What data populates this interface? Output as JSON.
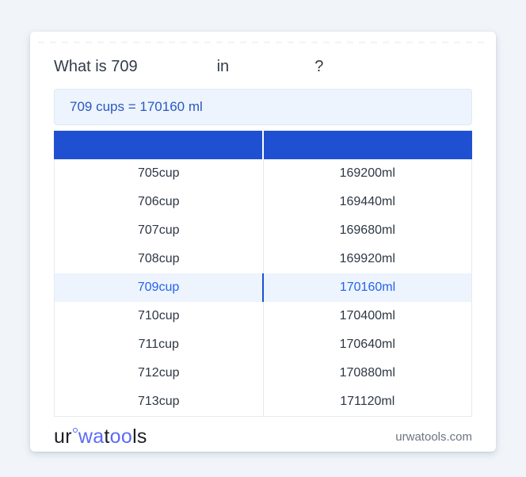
{
  "colors": {
    "page_bg": "#f1f4f9",
    "card_bg": "#ffffff",
    "table_header_blue": "#2050d2",
    "result_box_bg": "#edf4fd",
    "result_text_blue": "#2a58c4",
    "active_row_bg": "#edf4fe",
    "active_row_text": "#2563eb",
    "active_divider_blue": "#1d4ed8",
    "logo_accent_blue": "#5b6af5",
    "footer_text_gray": "#6b7480"
  },
  "title": {
    "prefix": "What is 709",
    "connector": "in",
    "suffix": "?"
  },
  "result": {
    "text": "709 cups = 170160 ml"
  },
  "table": {
    "header": {
      "col_cup": "",
      "col_ml": ""
    },
    "rows": [
      {
        "cup": "705cup",
        "ml": "169200ml",
        "active": false
      },
      {
        "cup": "706cup",
        "ml": "169440ml",
        "active": false
      },
      {
        "cup": "707cup",
        "ml": "169680ml",
        "active": false
      },
      {
        "cup": "708cup",
        "ml": "169920ml",
        "active": false
      },
      {
        "cup": "709cup",
        "ml": "170160ml",
        "active": true
      },
      {
        "cup": "710cup",
        "ml": "170400ml",
        "active": false
      },
      {
        "cup": "711cup",
        "ml": "170640ml",
        "active": false
      },
      {
        "cup": "712cup",
        "ml": "170880ml",
        "active": false
      },
      {
        "cup": "713cup",
        "ml": "171120ml",
        "active": false
      }
    ]
  },
  "footer": {
    "logo": {
      "part_ur": "ur",
      "part_wa": "wa",
      "part_t": "t",
      "part_oo": "oo",
      "part_ls": "ls"
    },
    "site": "urwatools.com"
  }
}
